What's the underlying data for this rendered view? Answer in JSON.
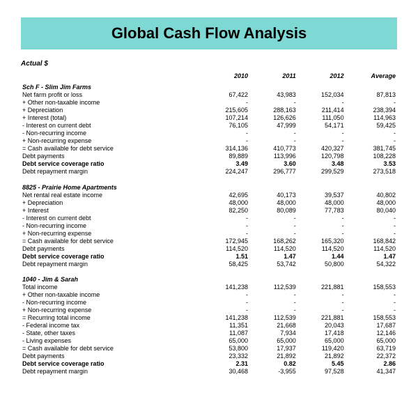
{
  "title_bar_bg": "#7ed9d4",
  "title": "Global  Cash Flow Analysis",
  "subtitle": "Actual $",
  "columns": [
    "2010",
    "2011",
    "2012",
    "Average"
  ],
  "sections": [
    {
      "header": "Sch F - Slim Jim Farms",
      "rows": [
        {
          "label": "Net farm profit or loss",
          "vals": [
            "67,422",
            "43,983",
            "152,034",
            "87,813"
          ],
          "bold": false
        },
        {
          "label": "+ Other non-taxable income",
          "vals": [
            "-",
            "-",
            "-",
            "-"
          ],
          "bold": false
        },
        {
          "label": "+ Depreciation",
          "vals": [
            "215,605",
            "288,163",
            "211,414",
            "238,394"
          ],
          "bold": false
        },
        {
          "label": "+ Interest (total)",
          "vals": [
            "107,214",
            "126,626",
            "111,050",
            "114,963"
          ],
          "bold": false
        },
        {
          "label": "- Interest on current debt",
          "vals": [
            "76,105",
            "47,999",
            "54,171",
            "59,425"
          ],
          "bold": false
        },
        {
          "label": "- Non-recurring income",
          "vals": [
            "-",
            "-",
            "-",
            "-"
          ],
          "bold": false
        },
        {
          "label": "+ Non-recurring expense",
          "vals": [
            "-",
            "-",
            "-",
            "-"
          ],
          "bold": false
        },
        {
          "label": "= Cash available for debt service",
          "vals": [
            "314,136",
            "410,773",
            "420,327",
            "381,745"
          ],
          "bold": false
        },
        {
          "label": "Debt payments",
          "vals": [
            "89,889",
            "113,996",
            "120,798",
            "108,228"
          ],
          "bold": false
        },
        {
          "label": "Debt service coverage ratio",
          "vals": [
            "3.49",
            "3.60",
            "3.48",
            "3.53"
          ],
          "bold": true
        },
        {
          "label": "Debt repayment margin",
          "vals": [
            "224,247",
            "296,777",
            "299,529",
            "273,518"
          ],
          "bold": false
        }
      ]
    },
    {
      "header": "8825 - Prairie Home Apartments",
      "rows": [
        {
          "label": "Net rental real estate income",
          "vals": [
            "42,695",
            "40,173",
            "39,537",
            "40,802"
          ],
          "bold": false
        },
        {
          "label": "+ Depreciation",
          "vals": [
            "48,000",
            "48,000",
            "48,000",
            "48,000"
          ],
          "bold": false
        },
        {
          "label": "+ Interest",
          "vals": [
            "82,250",
            "80,089",
            "77,783",
            "80,040"
          ],
          "bold": false
        },
        {
          "label": "- Interest on current debt",
          "vals": [
            "-",
            "-",
            "-",
            "-"
          ],
          "bold": false
        },
        {
          "label": "- Non-recurring income",
          "vals": [
            "-",
            "-",
            "-",
            "-"
          ],
          "bold": false
        },
        {
          "label": "+ Non-recurring expense",
          "vals": [
            "-",
            "-",
            "-",
            "-"
          ],
          "bold": false
        },
        {
          "label": "= Cash available for debt service",
          "vals": [
            "172,945",
            "168,262",
            "165,320",
            "168,842"
          ],
          "bold": false
        },
        {
          "label": "Debt payments",
          "vals": [
            "114,520",
            "114,520",
            "114,520",
            "114,520"
          ],
          "bold": false
        },
        {
          "label": "Debt service coverage ratio",
          "vals": [
            "1.51",
            "1.47",
            "1.44",
            "1.47"
          ],
          "bold": true
        },
        {
          "label": "Debt repayment margin",
          "vals": [
            "58,425",
            "53,742",
            "50,800",
            "54,322"
          ],
          "bold": false
        }
      ]
    },
    {
      "header": "1040 - Jim & Sarah",
      "rows": [
        {
          "label": "Total income",
          "vals": [
            "141,238",
            "112,539",
            "221,881",
            "158,553"
          ],
          "bold": false
        },
        {
          "label": "+ Other non-taxable income",
          "vals": [
            "-",
            "-",
            "-",
            "-"
          ],
          "bold": false
        },
        {
          "label": "- Non-recurring income",
          "vals": [
            "-",
            "-",
            "-",
            "-"
          ],
          "bold": false
        },
        {
          "label": "+ Non-recurring expense",
          "vals": [
            "-",
            "-",
            "-",
            "-"
          ],
          "bold": false
        },
        {
          "label": "= Recurring total income",
          "vals": [
            "141,238",
            "112,539",
            "221,881",
            "158,553"
          ],
          "bold": false
        },
        {
          "label": "- Federal income tax",
          "vals": [
            "11,351",
            "21,668",
            "20,043",
            "17,687"
          ],
          "bold": false
        },
        {
          "label": "- State, other taxes",
          "vals": [
            "11,087",
            "7,934",
            "17,418",
            "12,146"
          ],
          "bold": false
        },
        {
          "label": "- Living expenses",
          "vals": [
            "65,000",
            "65,000",
            "65,000",
            "65,000"
          ],
          "bold": false
        },
        {
          "label": "= Cash available for debt service",
          "vals": [
            "53,800",
            "17,937",
            "119,420",
            "63,719"
          ],
          "bold": false
        },
        {
          "label": "Debt payments",
          "vals": [
            "23,332",
            "21,892",
            "21,892",
            "22,372"
          ],
          "bold": false
        },
        {
          "label": "Debt service coverage ratio",
          "vals": [
            "2.31",
            "0.82",
            "5.45",
            "2.86"
          ],
          "bold": true
        },
        {
          "label": "Debt repayment margin",
          "vals": [
            "30,468",
            "-3,955",
            "97,528",
            "41,347"
          ],
          "bold": false
        }
      ]
    }
  ]
}
